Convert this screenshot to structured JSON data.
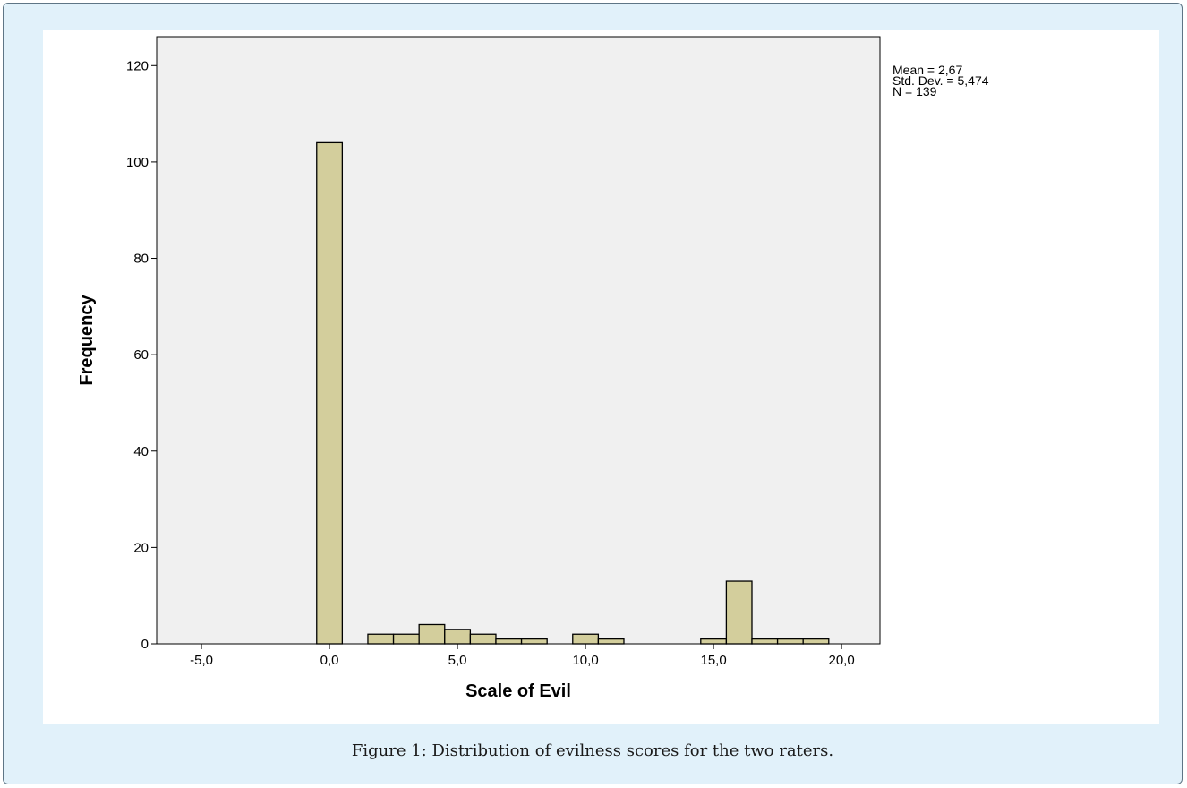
{
  "figure": {
    "caption": "Figure 1: Distribution of evilness scores for the two raters."
  },
  "colors": {
    "frame_bg": "#e1f1fa",
    "plot_bg": "#f0f0f0",
    "bar_fill": "#d3ce9c",
    "bar_stroke": "#000000"
  },
  "stats": {
    "mean": "Mean = 2,67",
    "std": "Std. Dev. = 5,474",
    "n": "N = 139"
  },
  "chart_data": {
    "type": "bar",
    "xlabel": "Scale of Evil",
    "ylabel": "Frequency",
    "xlim": [
      -6.75,
      21.5
    ],
    "ylim": [
      0,
      126
    ],
    "x_ticks": [
      {
        "value": -5,
        "label": "-5,0"
      },
      {
        "value": 0,
        "label": "0,0"
      },
      {
        "value": 5,
        "label": "5,0"
      },
      {
        "value": 10,
        "label": "10,0"
      },
      {
        "value": 15,
        "label": "15,0"
      },
      {
        "value": 20,
        "label": "20,0"
      }
    ],
    "y_ticks": [
      {
        "value": 0,
        "label": "0"
      },
      {
        "value": 20,
        "label": "20"
      },
      {
        "value": 40,
        "label": "40"
      },
      {
        "value": 60,
        "label": "60"
      },
      {
        "value": 80,
        "label": "80"
      },
      {
        "value": 100,
        "label": "100"
      },
      {
        "value": 120,
        "label": "120"
      }
    ],
    "bin_width": 1,
    "bins": [
      {
        "x": 0,
        "count": 104
      },
      {
        "x": 2,
        "count": 2
      },
      {
        "x": 3,
        "count": 2
      },
      {
        "x": 4,
        "count": 4
      },
      {
        "x": 5,
        "count": 3
      },
      {
        "x": 6,
        "count": 2
      },
      {
        "x": 7,
        "count": 1
      },
      {
        "x": 8,
        "count": 1
      },
      {
        "x": 10,
        "count": 2
      },
      {
        "x": 11,
        "count": 1
      },
      {
        "x": 15,
        "count": 1
      },
      {
        "x": 16,
        "count": 13
      },
      {
        "x": 17,
        "count": 1
      },
      {
        "x": 18,
        "count": 1
      },
      {
        "x": 19,
        "count": 1
      }
    ],
    "grid": false,
    "legend": "none"
  }
}
